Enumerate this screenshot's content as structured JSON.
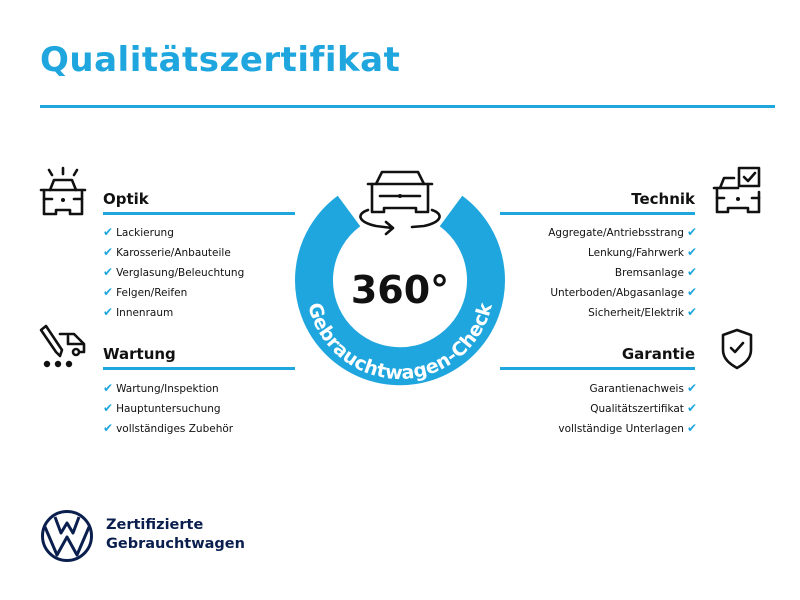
{
  "title": "Qualitätszertifikat",
  "colors": {
    "accent": "#1fa6de",
    "brand": "#0b1f4f",
    "text": "#111111"
  },
  "center": {
    "label": "360°",
    "ring_text": "Gebrauchtwagen-Check",
    "icon": "car-rotate-icon"
  },
  "sections": {
    "optik": {
      "title": "Optik",
      "icon": "car-lights-icon",
      "items": [
        "Lackierung",
        "Karosserie/Anbauteile",
        "Verglasung/Beleuchtung",
        "Felgen/Reifen",
        "Innenraum"
      ]
    },
    "wartung": {
      "title": "Wartung",
      "icon": "service-tool-car-icon",
      "items": [
        "Wartung/Inspektion",
        "Hauptuntersuchung",
        "vollständiges Zubehör"
      ]
    },
    "technik": {
      "title": "Technik",
      "icon": "car-checkbox-icon",
      "items": [
        "Aggregate/Antriebsstrang",
        "Lenkung/Fahrwerk",
        "Bremsanlage",
        "Unterboden/Abgasanlage",
        "Sicherheit/Elektrik"
      ]
    },
    "garantie": {
      "title": "Garantie",
      "icon": "shield-check-icon",
      "items": [
        "Garantienachweis",
        "Qualitätszertifikat",
        "vollständige Unterlagen"
      ]
    }
  },
  "check_glyph": "✔",
  "brand": {
    "line1": "Zertifizierte",
    "line2": "Gebrauchtwagen",
    "logo": "vw-logo"
  }
}
